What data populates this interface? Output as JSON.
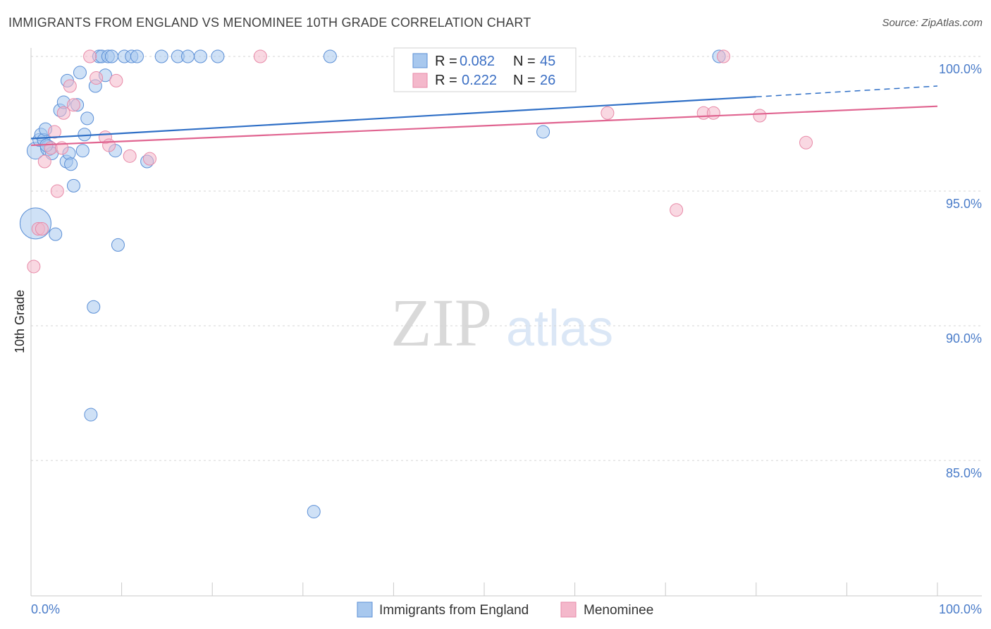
{
  "header": {
    "title": "IMMIGRANTS FROM ENGLAND VS MENOMINEE 10TH GRADE CORRELATION CHART",
    "source": "Source: ZipAtlas.com"
  },
  "watermark": {
    "zip": "ZIP",
    "atlas": "atlas"
  },
  "colors": {
    "blue_fill": "#a8c8ee",
    "blue_stroke": "#5b8fd6",
    "blue_line": "#2f6fc6",
    "pink_fill": "#f4b8cb",
    "pink_stroke": "#e88aa8",
    "pink_line": "#e06490",
    "tick_text": "#4a7cc9"
  },
  "stats": [
    {
      "r_label": "R =",
      "r_value": "0.082",
      "n_label": "N =",
      "n_value": "45"
    },
    {
      "r_label": "R =",
      "r_value": "0.222",
      "n_label": "N =",
      "n_value": "26"
    }
  ],
  "chart_data": {
    "type": "scatter",
    "title": "IMMIGRANTS FROM ENGLAND VS MENOMINEE 10TH GRADE CORRELATION CHART",
    "xlabel": "",
    "ylabel": "10th Grade",
    "xlim": [
      0,
      100
    ],
    "ylim": [
      80.7,
      100.3
    ],
    "x_tick_labels": [
      "0.0%",
      "100.0%"
    ],
    "y_ticks": [
      85,
      90,
      95,
      100
    ],
    "y_tick_labels": [
      "85.0%",
      "90.0%",
      "95.0%",
      "100.0%"
    ],
    "grid": true,
    "legend_position": "bottom-center",
    "series": [
      {
        "name": "Immigrants from England",
        "color": "#a8c8ee",
        "trend": {
          "x": [
            0,
            80
          ],
          "y": [
            96.95,
            98.5
          ],
          "dashed_to": [
            100,
            98.9
          ]
        },
        "points": [
          [
            0.5,
            93.8,
            22
          ],
          [
            0.5,
            96.5,
            12
          ],
          [
            0.9,
            96.9,
            9
          ],
          [
            1.1,
            97.1,
            9
          ],
          [
            1.4,
            96.9,
            9
          ],
          [
            1.6,
            97.3,
            9
          ],
          [
            1.9,
            96.6,
            11
          ],
          [
            2.3,
            96.4,
            9
          ],
          [
            2.7,
            93.4,
            9
          ],
          [
            3.2,
            98.0,
            9
          ],
          [
            3.6,
            98.3,
            9
          ],
          [
            3.9,
            96.1,
            9
          ],
          [
            4.0,
            99.1,
            9
          ],
          [
            4.2,
            96.4,
            9
          ],
          [
            4.4,
            96.0,
            9
          ],
          [
            4.7,
            95.2,
            9
          ],
          [
            5.1,
            98.2,
            9
          ],
          [
            5.4,
            99.4,
            9
          ],
          [
            5.7,
            96.5,
            9
          ],
          [
            5.9,
            97.1,
            9
          ],
          [
            6.2,
            97.7,
            9
          ],
          [
            6.6,
            86.7,
            9
          ],
          [
            6.9,
            90.7,
            9
          ],
          [
            7.1,
            98.9,
            9
          ],
          [
            7.5,
            100.0,
            9
          ],
          [
            7.8,
            100.0,
            9
          ],
          [
            8.2,
            99.3,
            9
          ],
          [
            8.5,
            100.0,
            9
          ],
          [
            8.9,
            100.0,
            9
          ],
          [
            9.3,
            96.5,
            9
          ],
          [
            9.6,
            93.0,
            9
          ],
          [
            10.3,
            100.0,
            9
          ],
          [
            11.1,
            100.0,
            9
          ],
          [
            11.7,
            100.0,
            9
          ],
          [
            12.8,
            96.1,
            9
          ],
          [
            14.4,
            100.0,
            9
          ],
          [
            16.2,
            100.0,
            9
          ],
          [
            17.3,
            100.0,
            9
          ],
          [
            18.7,
            100.0,
            9
          ],
          [
            20.6,
            100.0,
            9
          ],
          [
            31.2,
            83.1,
            9
          ],
          [
            33.0,
            100.0,
            9
          ],
          [
            56.5,
            97.2,
            9
          ],
          [
            75.9,
            100.0,
            9
          ],
          [
            1.7,
            96.7,
            9
          ]
        ]
      },
      {
        "name": "Menominee",
        "color": "#f4b8cb",
        "trend": {
          "x": [
            0,
            100
          ],
          "y": [
            96.7,
            98.15
          ]
        },
        "points": [
          [
            0.3,
            92.2,
            9
          ],
          [
            0.8,
            93.6,
            9
          ],
          [
            1.2,
            93.6,
            9
          ],
          [
            1.5,
            96.1,
            9
          ],
          [
            2.2,
            96.6,
            9
          ],
          [
            2.6,
            97.2,
            9
          ],
          [
            2.9,
            95.0,
            9
          ],
          [
            3.4,
            96.6,
            9
          ],
          [
            3.6,
            97.9,
            9
          ],
          [
            4.3,
            98.9,
            9
          ],
          [
            4.7,
            98.2,
            9
          ],
          [
            6.5,
            100.0,
            9
          ],
          [
            7.2,
            99.2,
            9
          ],
          [
            8.2,
            97.0,
            9
          ],
          [
            8.6,
            96.7,
            9
          ],
          [
            9.4,
            99.1,
            9
          ],
          [
            10.9,
            96.3,
            9
          ],
          [
            13.1,
            96.2,
            9
          ],
          [
            25.3,
            100.0,
            9
          ],
          [
            63.6,
            97.9,
            9
          ],
          [
            71.2,
            94.3,
            9
          ],
          [
            74.2,
            97.9,
            9
          ],
          [
            75.3,
            97.9,
            9
          ],
          [
            76.4,
            100.0,
            9
          ],
          [
            80.4,
            97.8,
            9
          ],
          [
            85.5,
            96.8,
            9
          ]
        ]
      }
    ]
  }
}
